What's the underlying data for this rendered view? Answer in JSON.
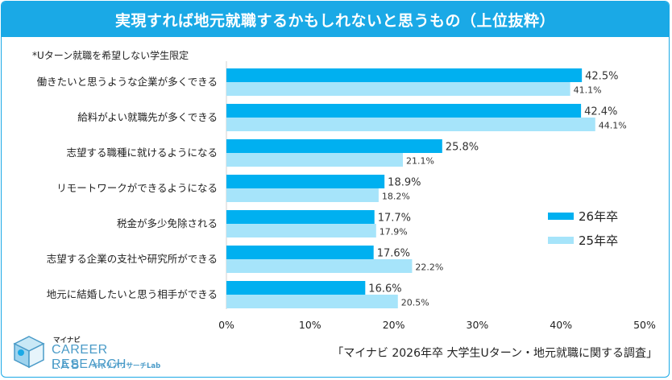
{
  "title": "実現すれば地元就職するかもしれないと思うもの（上位抜粋）",
  "note": "*Uターン就職を希望しない学生限定",
  "source": "「マイナビ 2026年卒 大学生Uターン・地元就職に関する調査」",
  "logo": {
    "mynavi": "マイナビ",
    "line1": "CAREER RESEARCH",
    "line2": "LAB",
    "kana": "キャリアリサーチLab"
  },
  "colors": {
    "header": "#1aa9e6",
    "series_26": "#00b0f0",
    "series_25": "#a6e4fa"
  },
  "chart_data": {
    "type": "bar",
    "orientation": "horizontal",
    "categories": [
      "働きたいと思うような企業が多くできる",
      "給料がよい就職先が多くできる",
      "志望する職種に就けるようになる",
      "リモートワークができるようになる",
      "税金が多少免除される",
      "志望する企業の支社や研究所ができる",
      "地元に結婚したいと思う相手ができる"
    ],
    "series": [
      {
        "name": "26年卒",
        "values": [
          42.5,
          42.4,
          25.8,
          18.9,
          17.7,
          17.6,
          16.6
        ],
        "labels": [
          "42.5%",
          "42.4%",
          "25.8%",
          "18.9%",
          "17.7%",
          "17.6%",
          "16.6%"
        ]
      },
      {
        "name": "25年卒",
        "values": [
          41.1,
          44.1,
          21.1,
          18.2,
          17.9,
          22.2,
          20.5
        ],
        "labels": [
          "41.1%",
          "44.1%",
          "21.1%",
          "18.2%",
          "17.9%",
          "22.2%",
          "20.5%"
        ]
      }
    ],
    "xlim": [
      0,
      50
    ],
    "x_ticks": [
      "0%",
      "10%",
      "20%",
      "30%",
      "40%",
      "50%"
    ],
    "grid": false,
    "legend": "right"
  }
}
